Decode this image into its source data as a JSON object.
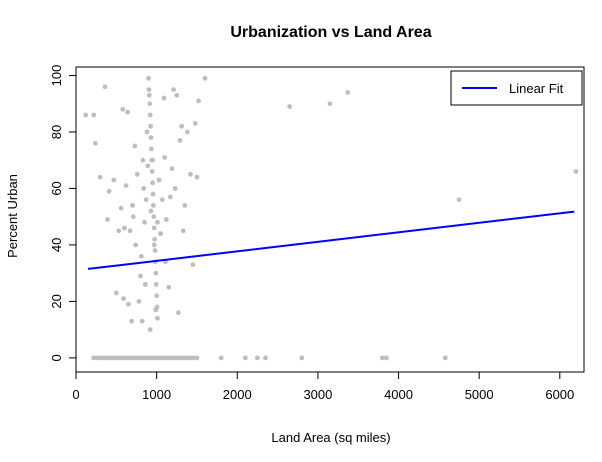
{
  "chart_data": {
    "type": "scatter",
    "title": "Urbanization vs Land Area",
    "xlabel": "Land Area (sq miles)",
    "ylabel": "Percent Urban",
    "xlim": [
      0,
      6300
    ],
    "ylim": [
      -5,
      103
    ],
    "xticks": [
      0,
      1000,
      2000,
      3000,
      4000,
      5000,
      6000
    ],
    "yticks": [
      0,
      20,
      40,
      60,
      80,
      100
    ],
    "xtick_labels": [
      "0",
      "1000",
      "2000",
      "3000",
      "4000",
      "5000",
      "6000"
    ],
    "ytick_labels": [
      "0",
      "20",
      "40",
      "60",
      "80",
      "100"
    ],
    "grid": false,
    "legend": {
      "position": "top-right",
      "entries": [
        {
          "label": "Linear Fit",
          "color": "#0000ff"
        }
      ]
    },
    "points_color": "#bebebe",
    "fit_color": "#0000ff",
    "fit_line": {
      "x": [
        150,
        6180
      ],
      "y": [
        31.5,
        51.8
      ]
    },
    "points": [
      [
        120,
        86
      ],
      [
        220,
        86
      ],
      [
        240,
        76
      ],
      [
        300,
        64
      ],
      [
        360,
        96
      ],
      [
        390,
        49
      ],
      [
        410,
        59
      ],
      [
        470,
        63
      ],
      [
        500,
        23
      ],
      [
        530,
        45
      ],
      [
        560,
        53
      ],
      [
        580,
        88
      ],
      [
        590,
        21
      ],
      [
        600,
        46
      ],
      [
        620,
        61
      ],
      [
        640,
        87
      ],
      [
        650,
        19
      ],
      [
        670,
        45
      ],
      [
        690,
        13
      ],
      [
        700,
        54
      ],
      [
        710,
        50
      ],
      [
        730,
        75
      ],
      [
        740,
        40
      ],
      [
        760,
        65
      ],
      [
        780,
        20
      ],
      [
        800,
        29
      ],
      [
        810,
        36
      ],
      [
        820,
        13
      ],
      [
        830,
        70
      ],
      [
        840,
        60
      ],
      [
        850,
        48
      ],
      [
        860,
        26
      ],
      [
        870,
        56
      ],
      [
        880,
        80
      ],
      [
        890,
        68
      ],
      [
        900,
        99
      ],
      [
        905,
        95
      ],
      [
        910,
        93
      ],
      [
        915,
        90
      ],
      [
        920,
        86
      ],
      [
        925,
        82
      ],
      [
        930,
        78
      ],
      [
        935,
        74
      ],
      [
        940,
        70
      ],
      [
        945,
        66
      ],
      [
        950,
        62
      ],
      [
        955,
        58
      ],
      [
        960,
        54
      ],
      [
        965,
        50
      ],
      [
        970,
        46
      ],
      [
        975,
        42
      ],
      [
        980,
        38
      ],
      [
        985,
        34
      ],
      [
        990,
        30
      ],
      [
        995,
        26
      ],
      [
        1000,
        22
      ],
      [
        1005,
        18
      ],
      [
        1010,
        14
      ],
      [
        920,
        10
      ],
      [
        930,
        52
      ],
      [
        950,
        70
      ],
      [
        970,
        40
      ],
      [
        990,
        17
      ],
      [
        1010,
        48
      ],
      [
        1030,
        63
      ],
      [
        1050,
        44
      ],
      [
        1070,
        56
      ],
      [
        1090,
        92
      ],
      [
        1100,
        71
      ],
      [
        1110,
        34
      ],
      [
        1120,
        49
      ],
      [
        1150,
        25
      ],
      [
        1170,
        57
      ],
      [
        1190,
        67
      ],
      [
        1210,
        95
      ],
      [
        1230,
        60
      ],
      [
        1250,
        93
      ],
      [
        1270,
        16
      ],
      [
        1290,
        77
      ],
      [
        1310,
        82
      ],
      [
        1330,
        45
      ],
      [
        1350,
        54
      ],
      [
        1380,
        80
      ],
      [
        1420,
        65
      ],
      [
        1450,
        33
      ],
      [
        1480,
        83
      ],
      [
        1500,
        64
      ],
      [
        1520,
        91
      ],
      [
        1600,
        99
      ],
      [
        2650,
        89
      ],
      [
        3150,
        90
      ],
      [
        3370,
        94
      ],
      [
        4750,
        56
      ],
      [
        6200,
        66
      ],
      [
        220,
        0
      ],
      [
        260,
        0
      ],
      [
        300,
        0
      ],
      [
        340,
        0
      ],
      [
        380,
        0
      ],
      [
        420,
        0
      ],
      [
        460,
        0
      ],
      [
        500,
        0
      ],
      [
        540,
        0
      ],
      [
        580,
        0
      ],
      [
        620,
        0
      ],
      [
        660,
        0
      ],
      [
        700,
        0
      ],
      [
        740,
        0
      ],
      [
        780,
        0
      ],
      [
        820,
        0
      ],
      [
        860,
        0
      ],
      [
        900,
        0
      ],
      [
        940,
        0
      ],
      [
        980,
        0
      ],
      [
        1020,
        0
      ],
      [
        1060,
        0
      ],
      [
        1100,
        0
      ],
      [
        1140,
        0
      ],
      [
        1180,
        0
      ],
      [
        1220,
        0
      ],
      [
        1260,
        0
      ],
      [
        1300,
        0
      ],
      [
        1340,
        0
      ],
      [
        1380,
        0
      ],
      [
        1420,
        0
      ],
      [
        1460,
        0
      ],
      [
        1500,
        0
      ],
      [
        1800,
        0
      ],
      [
        2100,
        0
      ],
      [
        2250,
        0
      ],
      [
        2350,
        0
      ],
      [
        2800,
        0
      ],
      [
        3800,
        0
      ],
      [
        3850,
        0
      ],
      [
        4580,
        0
      ]
    ]
  }
}
